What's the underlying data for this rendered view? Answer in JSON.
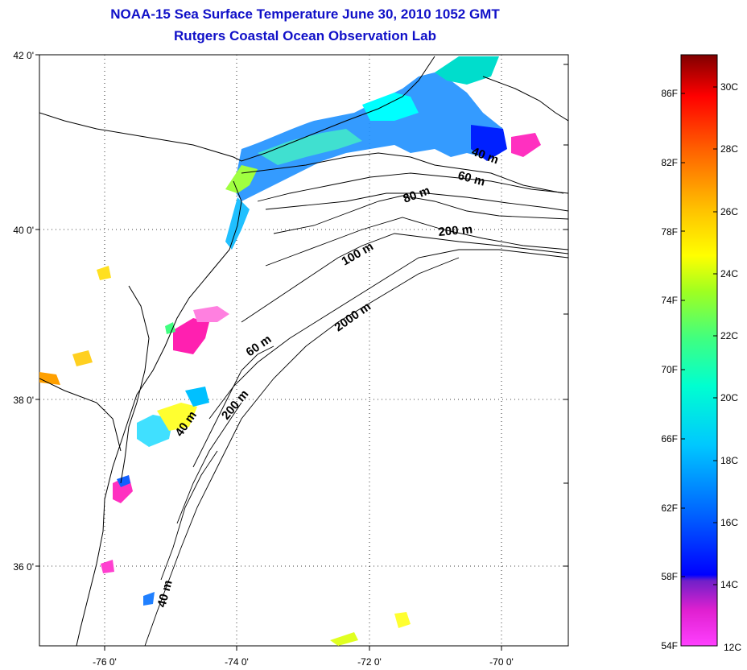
{
  "title_line1": "NOAA-15 Sea Surface Temperature June 30, 2010 1052 GMT",
  "title_line2": "Rutgers Coastal Ocean Observation Lab",
  "map": {
    "lat_ticks": [
      "42 0'",
      "40 0'",
      "38 0'",
      "36 0'"
    ],
    "lon_ticks": [
      "-76 0'",
      "-74 0'",
      "-72 0'",
      "-70 0'"
    ],
    "contour_labels": [
      "40 m",
      "60 m",
      "80 m",
      "200 m",
      "100 m",
      "2000 m",
      "60 m",
      "200 m",
      "40 m",
      "40 m"
    ]
  },
  "colorbar": {
    "fahrenheit_labels": [
      "86F",
      "82F",
      "78F",
      "74F",
      "70F",
      "66F",
      "62F",
      "58F",
      "54F"
    ],
    "celsius_labels": [
      "30C",
      "28C",
      "26C",
      "24C",
      "22C",
      "20C",
      "18C",
      "16C",
      "14C",
      "12C"
    ]
  },
  "colors": {
    "title": "#1010c8",
    "warm": "#800000",
    "cool": "#ff40ff"
  }
}
